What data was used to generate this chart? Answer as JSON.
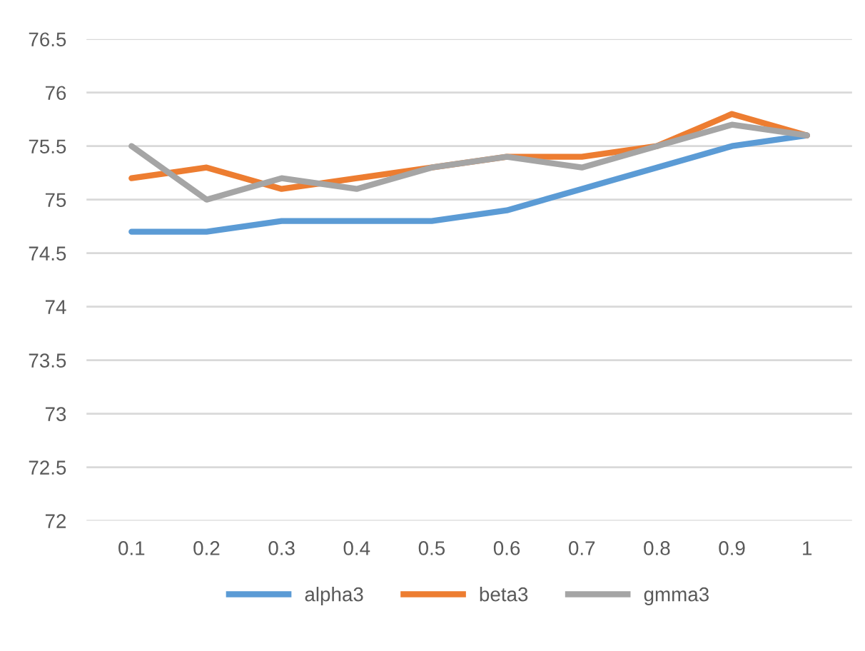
{
  "chart_data": {
    "type": "line",
    "categories": [
      "0.1",
      "0.2",
      "0.3",
      "0.4",
      "0.5",
      "0.6",
      "0.7",
      "0.8",
      "0.9",
      "1"
    ],
    "series": [
      {
        "name": "alpha3",
        "color": "#5b9bd5",
        "values": [
          74.7,
          74.7,
          74.8,
          74.8,
          74.8,
          74.9,
          75.1,
          75.3,
          75.5,
          75.6
        ]
      },
      {
        "name": "beta3",
        "color": "#ed7d31",
        "values": [
          75.2,
          75.3,
          75.1,
          75.2,
          75.3,
          75.4,
          75.4,
          75.5,
          75.8,
          75.6
        ]
      },
      {
        "name": "gmma3",
        "color": "#a5a5a5",
        "values": [
          75.5,
          75.0,
          75.2,
          75.1,
          75.3,
          75.4,
          75.3,
          75.5,
          75.7,
          75.6
        ]
      }
    ],
    "ylim": [
      72,
      76.5
    ],
    "yticks": [
      72,
      72.5,
      73,
      73.5,
      74,
      74.5,
      75,
      75.5,
      76,
      76.5
    ],
    "grid": "y",
    "legend": "bottom",
    "marker": "none",
    "line_style": "solid"
  }
}
